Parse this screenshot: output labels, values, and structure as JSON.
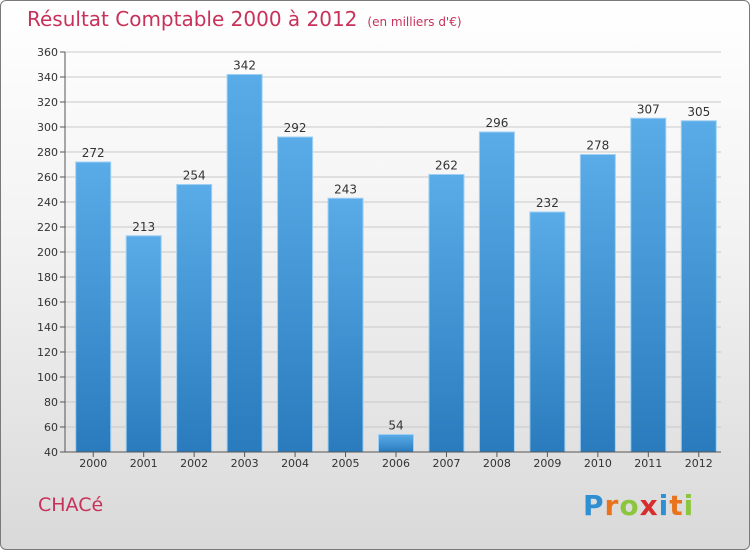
{
  "header": {
    "title": "Résultat Comptable 2000 à 2012",
    "unit": "(en milliers d'€)"
  },
  "footer": {
    "city": "CHACé",
    "brand": "Proxiti",
    "brand_letters": [
      {
        "ch": "P",
        "color": "#2e8fd3"
      },
      {
        "ch": "r",
        "color": "#e8731a"
      },
      {
        "ch": "o",
        "color": "#8cc63f"
      },
      {
        "ch": "x",
        "color": "#d62e2e"
      },
      {
        "ch": "i",
        "color": "#2e8fd3"
      },
      {
        "ch": "t",
        "color": "#e8731a"
      },
      {
        "ch": "i",
        "color": "#8cc63f"
      }
    ]
  },
  "colors": {
    "bar_top": "#5aace8",
    "bar_bottom": "#2a7bbd",
    "grid": "#c9c9c9",
    "axis_text": "#333333",
    "title": "#c8325a"
  },
  "chart_data": {
    "type": "bar",
    "title": "Résultat Comptable 2000 à 2012",
    "xlabel": "",
    "ylabel": "",
    "ylim": [
      40,
      360
    ],
    "ytick_step": 20,
    "grid": true,
    "categories": [
      "2000",
      "2001",
      "2002",
      "2003",
      "2004",
      "2005",
      "2006",
      "2007",
      "2008",
      "2009",
      "2010",
      "2011",
      "2012"
    ],
    "values": [
      272,
      213,
      254,
      342,
      292,
      243,
      54,
      262,
      296,
      232,
      278,
      307,
      305
    ]
  }
}
